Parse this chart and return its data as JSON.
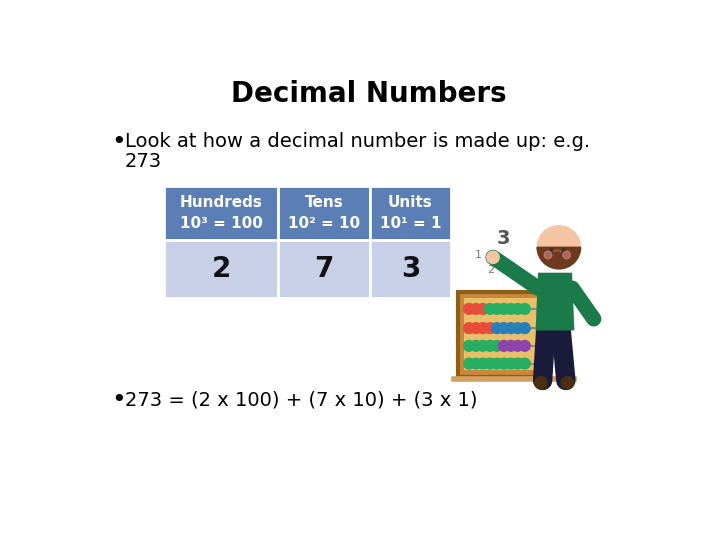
{
  "title": "Decimal Numbers",
  "title_fontsize": 20,
  "title_fontweight": "bold",
  "bg_color": "#ffffff",
  "bullet1_line1": "Look at how a decimal number is made up: e.g.",
  "bullet1_line2": "273",
  "bullet2": "273 = (2 x 100) + (7 x 10) + (3 x 1)",
  "table_header_color": "#5B7FB5",
  "table_row_color": "#C8D0E8",
  "table_headers": [
    "Hundreds\n10³ = 100",
    "Tens\n10² = 10",
    "Units\n10¹ = 1"
  ],
  "table_values": [
    "2",
    "7",
    "3"
  ],
  "table_header_fontsize": 11,
  "table_value_fontsize": 20,
  "text_color": "#000000",
  "text_fontsize": 14,
  "value_color": "#111111"
}
